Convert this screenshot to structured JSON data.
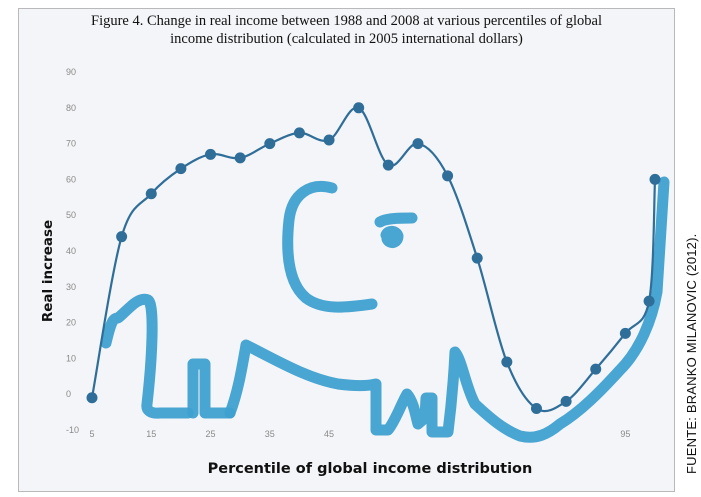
{
  "figure": {
    "title": "Figure 4. Change in real income between 1988 and 2008 at various percentiles of global\nincome distribution (calculated in 2005 international dollars)",
    "source_credit": "FUENTE: BRANKO MILANOVIC (2012)."
  },
  "colors": {
    "line": "#2f6e99",
    "marker": "#2f6e99",
    "elephant_drawing": "#3fa0cf",
    "plot_background": "#f4f5f8"
  },
  "chart_data": {
    "type": "line",
    "title": "",
    "xlabel": "Percentile of global income distribution",
    "ylabel": "Real increase",
    "xlim": [
      5,
      100
    ],
    "ylim": [
      -10,
      90
    ],
    "y_ticks": [
      -10,
      0,
      10,
      20,
      30,
      40,
      50,
      60,
      70,
      80,
      90
    ],
    "x_ticks": [
      5,
      15,
      25,
      35,
      45,
      95
    ],
    "grid": false,
    "legend": "none",
    "series": [
      {
        "x": [
          5,
          10,
          15,
          20,
          25,
          30,
          35,
          40,
          45,
          50,
          55,
          60,
          65,
          70,
          75,
          80,
          85,
          90,
          95,
          99,
          100
        ],
        "y": [
          -1,
          44,
          56,
          63,
          67,
          66,
          70,
          73,
          71,
          80,
          64,
          70,
          61,
          38,
          9,
          -4,
          -2,
          7,
          17,
          26,
          60
        ]
      }
    ],
    "annotations": [
      "elephant-drawing"
    ]
  }
}
